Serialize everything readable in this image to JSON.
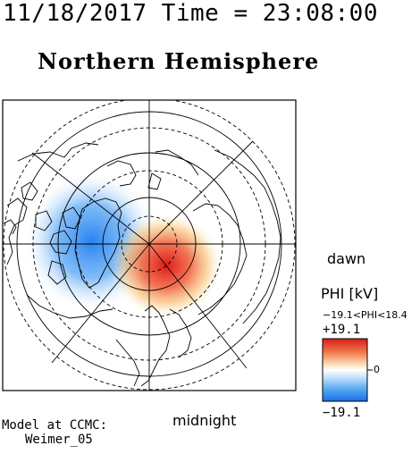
{
  "header": {
    "timestamp": "11/18/2017 Time = 23:08:00",
    "title": "Northern Hemisphere"
  },
  "map": {
    "orientation_labels": {
      "dawn": "dawn",
      "midnight": "midnight"
    },
    "colors": {
      "negative": "#1e7cf0",
      "positive": "#e01818",
      "grid": "#000000",
      "frame": "#000000"
    }
  },
  "colorbar": {
    "title": "PHI [kV]",
    "range_text": "−19.1<PHI<18.4",
    "max_label": "+19.1",
    "zero_label": "0",
    "min_label": "−19.1",
    "max_value": 19.1,
    "min_value": -19.1
  },
  "footer": {
    "model_line1": "Model at CCMC:",
    "model_line2": "Weimer_05"
  }
}
